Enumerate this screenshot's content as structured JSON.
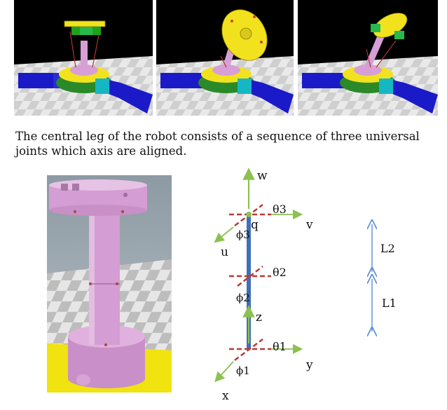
{
  "figure": {
    "caption": "The central leg of the robot consists of a sequence of three universal joints which axis are aligned."
  },
  "kinematic_diagram": {
    "axis_labels": {
      "w": "w",
      "v": "v",
      "u": "u",
      "z": "z",
      "y": "y",
      "x": "x"
    },
    "point_label": "q",
    "joint_angles": {
      "theta3": "θ3",
      "theta2": "θ2",
      "theta1": "θ1",
      "phi3": "ϕ3",
      "phi2": "ϕ2",
      "phi1": "ϕ1"
    },
    "segment_lengths": {
      "L2": "L2",
      "L1": "L1"
    }
  },
  "colors": {
    "axis_green": "#8cc152",
    "leg_blue": "#3f6fb7",
    "joint_red": "#b73b36",
    "dimension_blue": "#5b8dd3",
    "sim_background": "#000000",
    "base_blue": "#1a1ac8",
    "platform_yellow": "#f2e21d",
    "leg_pink": "#d79fd6"
  }
}
